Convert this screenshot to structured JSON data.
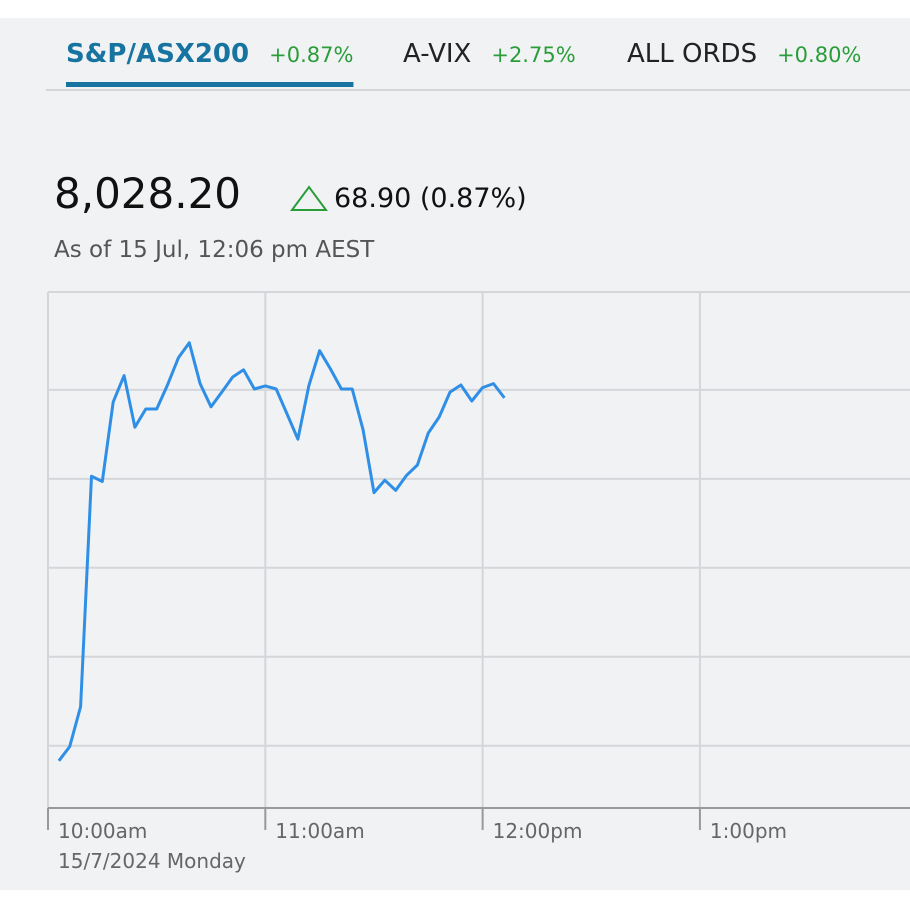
{
  "tabs": [
    {
      "name": "S&P/ASX200",
      "change": "+0.87%"
    },
    {
      "name": "A-VIX",
      "change": "+2.75%"
    },
    {
      "name": "ALL ORDS",
      "change": "+0.80%"
    }
  ],
  "selected_tab": 0,
  "price": "8,028.20",
  "price_change": "68.90 (0.87%)",
  "as_of": "As of 15 Jul, 12:06 pm AEST",
  "chart_data": {
    "type": "line",
    "color": "#2f8fe6",
    "x": [
      603,
      606,
      609,
      612,
      615,
      618,
      621,
      624,
      627,
      630,
      633,
      636,
      639,
      642,
      645,
      648,
      651,
      654,
      657,
      660,
      663,
      666,
      669,
      672,
      675,
      678,
      681,
      684,
      687,
      690,
      693,
      696,
      699,
      702,
      705,
      708,
      711,
      714,
      717,
      720,
      723,
      726
    ],
    "values": [
      7946.6,
      7949.8,
      7958.8,
      8010.6,
      8009.4,
      8027.3,
      8033.2,
      8021.6,
      8025.7,
      8025.7,
      8031.1,
      8037.2,
      8040.6,
      8031.4,
      8026.2,
      8029.5,
      8032.9,
      8034.5,
      8030.2,
      8030.9,
      8030.2,
      8024.6,
      8018.9,
      8030.9,
      8038.8,
      8034.7,
      8030.2,
      8030.2,
      8021.0,
      8006.9,
      8009.7,
      8007.4,
      8010.8,
      8013.1,
      8020.3,
      8023.9,
      8029.5,
      8031.1,
      8027.5,
      8030.5,
      8031.4,
      8028.2
    ],
    "xlim": [
      600,
      838
    ],
    "xticks": [
      {
        "value": 600,
        "label": "10:00am"
      },
      {
        "value": 660,
        "label": "11:00am"
      },
      {
        "value": 720,
        "label": "12:00pm"
      },
      {
        "value": 780,
        "label": "1:00pm"
      }
    ],
    "ylim": [
      7936,
      8052
    ],
    "yticks": [
      7950,
      7970,
      7990,
      8010,
      8030
    ],
    "grid": true,
    "date_label": "15/7/2024 Monday"
  }
}
